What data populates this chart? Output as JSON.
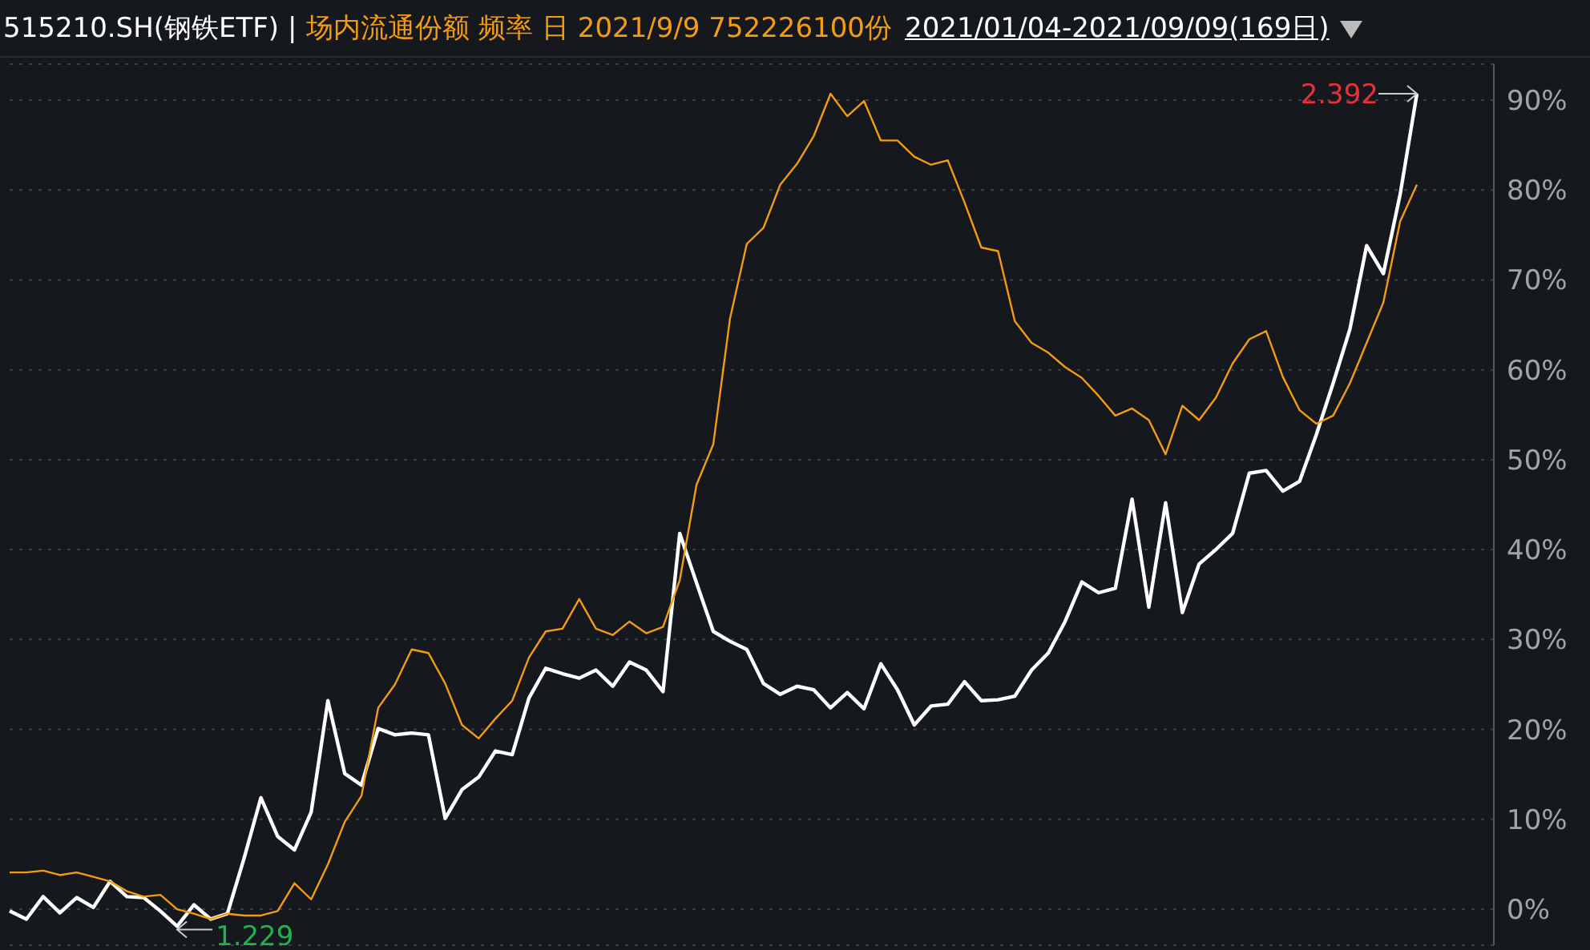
{
  "chart_data": {
    "type": "line",
    "title": "515210.SH(钢铁ETF) |",
    "subtitle": "场内流通份额 频率 日 2021/9/9 752226100份",
    "annotations": [
      "2021/01/04-2021/09/09(169日)",
      "2.392",
      "1.229"
    ],
    "categories": [
      null,
      null,
      null,
      null,
      null,
      null,
      null,
      null,
      null,
      null,
      null,
      null,
      null,
      null,
      null,
      null,
      null,
      null,
      null,
      null,
      null,
      null,
      null,
      null,
      null,
      null,
      null,
      null,
      null,
      null,
      null,
      null,
      null,
      null,
      null,
      null,
      null,
      null,
      null,
      null,
      null,
      null,
      null,
      null,
      null,
      null,
      null,
      null,
      null,
      null,
      null,
      null,
      null,
      null,
      null,
      null,
      null,
      null,
      null,
      null,
      null,
      null,
      null,
      null,
      null,
      null,
      null,
      null,
      null,
      null,
      null,
      null,
      null,
      null,
      null,
      null,
      null,
      null,
      null,
      null,
      null,
      null,
      null,
      null,
      null
    ],
    "series": [
      {
        "color": "#ffffff",
        "values": [
          -0.2,
          -1.1,
          1.4,
          -0.4,
          1.3,
          0.2,
          3.1,
          1.4,
          1.3,
          -0.2,
          -1.9,
          0.5,
          -1.1,
          -0.5,
          5.7,
          12.4,
          8.1,
          6.6,
          10.8,
          23.2,
          15.1,
          13.8,
          20.1,
          19.4,
          19.6,
          19.4,
          10.1,
          13.3,
          14.7,
          17.6,
          17.2,
          23.5,
          26.8,
          26.2,
          25.7,
          26.6,
          24.8,
          27.5,
          26.6,
          24.2,
          41.8,
          36.3,
          30.9,
          29.8,
          28.9,
          25.1,
          23.9,
          24.8,
          24.4,
          22.4,
          24.1,
          22.3,
          27.3,
          24.4,
          20.5,
          22.6,
          22.8,
          25.3,
          23.2,
          23.3,
          23.7,
          26.6,
          28.5,
          32.0,
          36.4,
          35.2,
          35.7,
          45.6,
          33.6,
          45.2,
          33.0,
          38.4,
          40.0,
          41.8,
          48.5,
          48.8,
          46.5,
          47.6,
          52.8,
          58.5,
          64.5,
          73.8,
          70.7,
          79.5,
          90.7
        ]
      },
      {
        "color": "#f39c12",
        "values": [
          4.1,
          4.1,
          4.3,
          3.8,
          4.1,
          3.6,
          3.1,
          2.0,
          1.4,
          1.6,
          0,
          -0.5,
          -1.1,
          -0.5,
          -0.7,
          -0.7,
          -0.2,
          2.9,
          1.1,
          5.0,
          9.7,
          12.6,
          22.4,
          25.0,
          28.9,
          28.5,
          25.1,
          20.5,
          19.0,
          21.2,
          23.2,
          28.0,
          30.9,
          31.2,
          34.5,
          31.2,
          30.5,
          32.0,
          30.7,
          31.4,
          36.6,
          47.2,
          51.7,
          65.7,
          74.0,
          75.8,
          80.6,
          82.9,
          86.0,
          90.7,
          88.2,
          89.9,
          85.5,
          85.5,
          83.7,
          82.8,
          83.3,
          78.6,
          73.6,
          73.2,
          65.4,
          63.0,
          61.9,
          60.3,
          59.1,
          57.1,
          54.9,
          55.7,
          54.4,
          50.6,
          56.0,
          54.4,
          56.9,
          60.7,
          63.4,
          64.3,
          59.2,
          55.5,
          54.0,
          54.9,
          58.5,
          63.0,
          67.5,
          76.5,
          80.6
        ]
      }
    ],
    "ylim": [
      -4,
      94
    ],
    "yticks": [
      {
        "value": 0,
        "label": "0%"
      },
      {
        "value": 10,
        "label": "10%"
      },
      {
        "value": 20,
        "label": "20%"
      },
      {
        "value": 30,
        "label": "30%"
      },
      {
        "value": 40,
        "label": "40%"
      },
      {
        "value": 50,
        "label": "50%"
      },
      {
        "value": 60,
        "label": "60%"
      },
      {
        "value": 70,
        "label": "70%"
      },
      {
        "value": 80,
        "label": "80%"
      },
      {
        "value": 90,
        "label": "90%"
      }
    ],
    "grid": "y",
    "legend": false,
    "marker": "none",
    "line_style": "solid"
  }
}
